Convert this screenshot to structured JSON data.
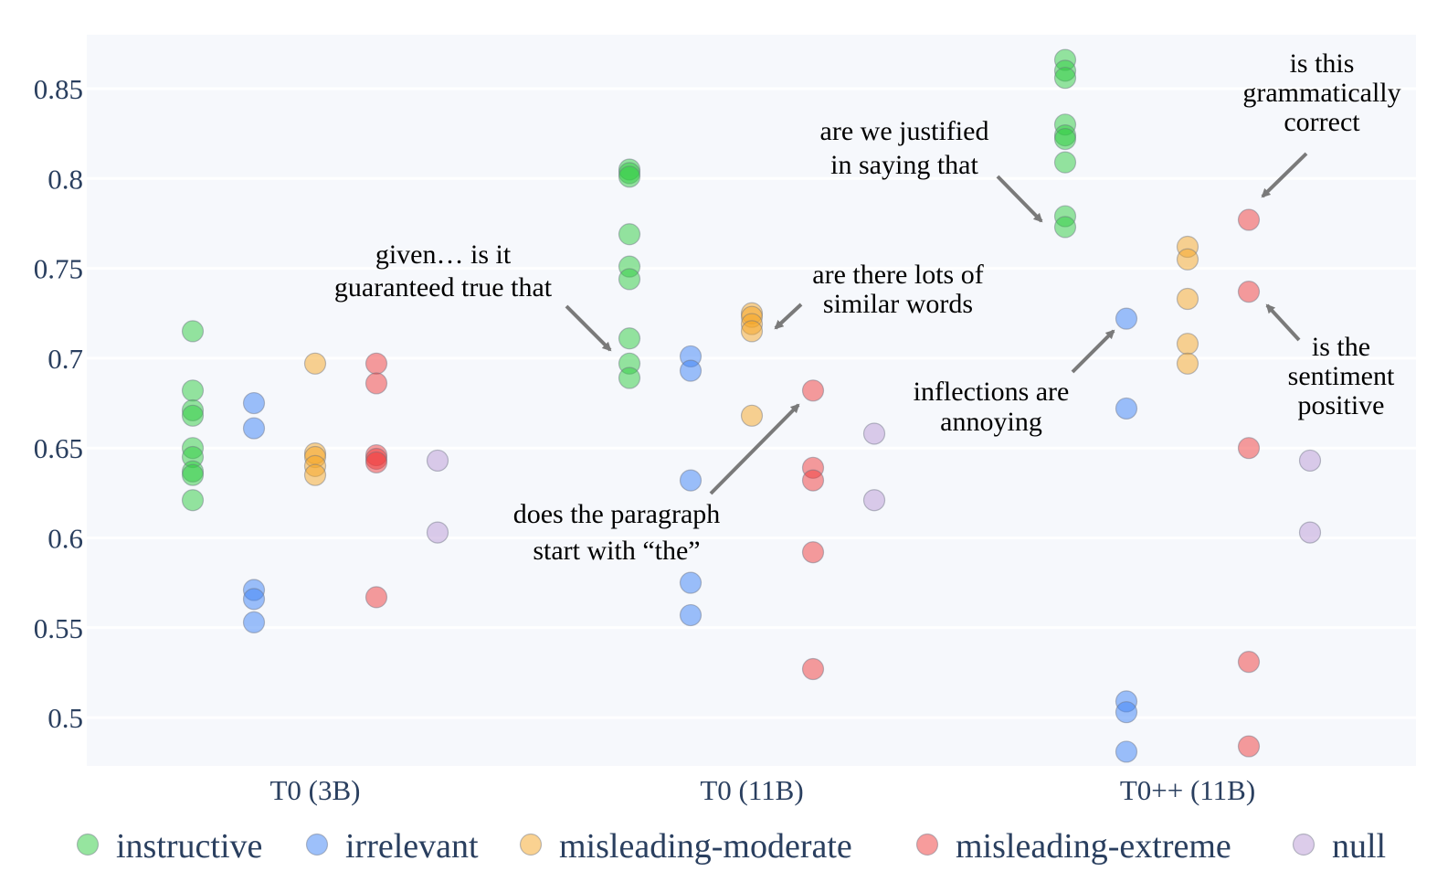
{
  "chart_data": {
    "type": "scatter",
    "categories": [
      "T0 (3B)",
      "T0 (11B)",
      "T0++ (11B)"
    ],
    "yticks": [
      "0.5",
      "0.55",
      "0.6",
      "0.65",
      "0.7",
      "0.75",
      "0.8",
      "0.85"
    ],
    "ylim": [
      0.475,
      0.885
    ],
    "grid": true,
    "legend_position": "bottom",
    "series": [
      {
        "name": "instructive",
        "color": "#2ecc40",
        "values": [
          [
            0.715,
            0.682,
            0.671,
            0.668,
            0.65,
            0.645,
            0.637,
            0.635,
            0.621
          ],
          [
            0.805,
            0.803,
            0.801,
            0.769,
            0.751,
            0.744,
            0.711,
            0.697,
            0.689
          ],
          [
            0.866,
            0.86,
            0.856,
            0.83,
            0.824,
            0.822,
            0.809,
            0.779,
            0.773
          ]
        ]
      },
      {
        "name": "irrelevant",
        "color": "#3b82f6",
        "values": [
          [
            0.675,
            0.661,
            0.571,
            0.566,
            0.553
          ],
          [
            0.701,
            0.693,
            0.632,
            0.575,
            0.557
          ],
          [
            0.722,
            0.672,
            0.509,
            0.503,
            0.481
          ]
        ]
      },
      {
        "name": "misleading-moderate",
        "color": "#f5a623",
        "values": [
          [
            0.697,
            0.647,
            0.645,
            0.64,
            0.635
          ],
          [
            0.725,
            0.723,
            0.719,
            0.715,
            0.668
          ],
          [
            0.762,
            0.755,
            0.733,
            0.708,
            0.697
          ]
        ]
      },
      {
        "name": "misleading-extreme",
        "color": "#f03a3a",
        "values": [
          [
            0.697,
            0.686,
            0.646,
            0.644,
            0.642,
            0.567
          ],
          [
            0.682,
            0.639,
            0.632,
            0.592,
            0.527
          ],
          [
            0.777,
            0.737,
            0.65,
            0.531,
            0.484
          ]
        ]
      },
      {
        "name": "null",
        "color": "#b99ad6",
        "values": [
          [
            0.643,
            0.603
          ],
          [
            0.658,
            0.621
          ],
          [
            0.643,
            0.603
          ]
        ]
      }
    ],
    "annotations": [
      {
        "lines": [
          "given… is it",
          "guaranteed true that"
        ]
      },
      {
        "lines": [
          "are there lots of",
          "similar words"
        ]
      },
      {
        "lines": [
          "does the paragraph",
          "start with “the”"
        ]
      },
      {
        "lines": [
          "are we justified",
          "in saying that"
        ]
      },
      {
        "lines": [
          "inflections are",
          "annoying"
        ]
      },
      {
        "lines": [
          "is this",
          "grammatically",
          "correct"
        ]
      },
      {
        "lines": [
          "is the",
          "sentiment",
          "positive"
        ]
      }
    ]
  }
}
